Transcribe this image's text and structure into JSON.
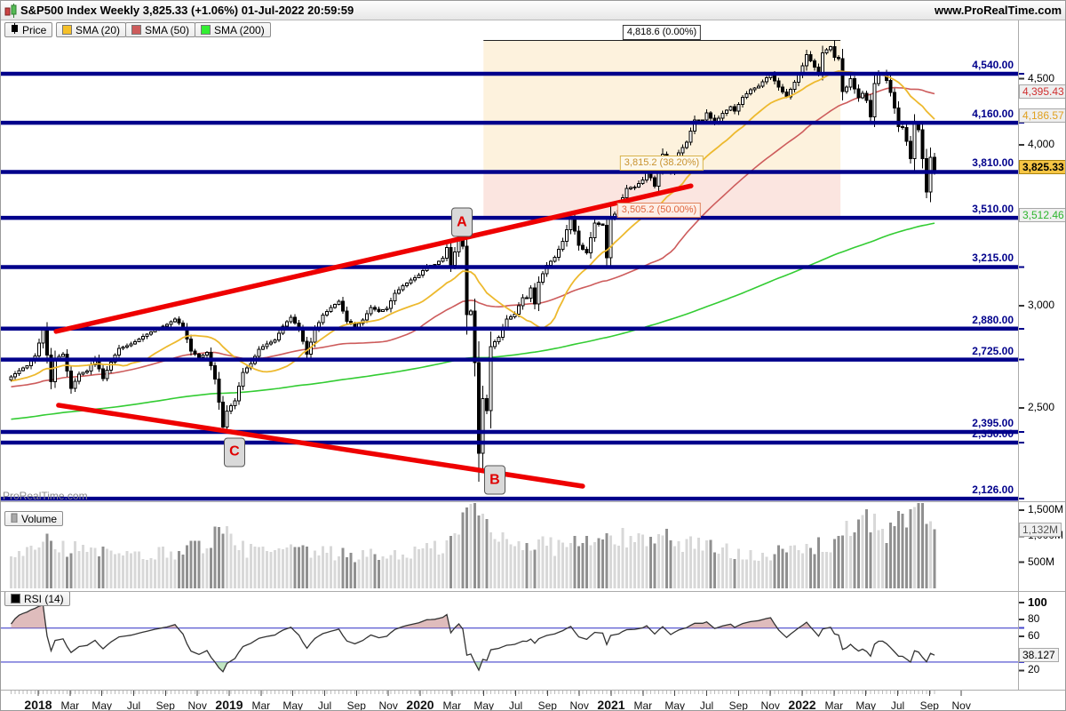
{
  "window": {
    "title": "S&P500 Index Weekly 3,825.33 (+1.06%) 01-Jul-2022 20:59:59",
    "site": "www.ProRealTime.com",
    "watermark": "ProRealTime.com"
  },
  "legend": {
    "price": "Price",
    "sma20": "SMA (20)",
    "sma50": "SMA (50)",
    "sma200": "SMA (200)",
    "volume": "Volume",
    "rsi": "RSI (14)"
  },
  "colors": {
    "level_line": "#00008b",
    "trend_line": "#ee0000",
    "sma20": "#edb92e",
    "sma50": "#cd5c5c",
    "sma200": "#33cc33",
    "candle": "#000000",
    "price_box_bg": "#f6c544",
    "vol_up": "#d8d8d8",
    "vol_down": "#909090",
    "rsi_line": "#333333",
    "rsi_band_line": "#4444cc",
    "fib_upper_fill": "#fdf2dd",
    "fib_lower_fill": "#fbe5e0"
  },
  "chart_data": {
    "type": "candlestick",
    "instrument": "S&P500 Index",
    "timeframe": "Weekly",
    "last_price": "3,825.33",
    "change_pct": "+1.06%",
    "datetime": "01-Jul-2022 20:59:59",
    "price_scale": "log",
    "ylim": [
      2119,
      4875
    ],
    "grid": false,
    "axis_ticks_price": [
      {
        "label": "4,500",
        "value": 4500
      },
      {
        "label": "4,000",
        "value": 4000
      },
      {
        "label": "3,000",
        "value": 3000
      },
      {
        "label": "2,500",
        "value": 2500
      }
    ],
    "horizontal_levels": [
      {
        "label": "4,540.00",
        "value": 4540
      },
      {
        "label": "4,160.00",
        "value": 4160
      },
      {
        "label": "3,810.00",
        "value": 3810
      },
      {
        "label": "3,510.00",
        "value": 3510
      },
      {
        "label": "3,215.00",
        "value": 3215
      },
      {
        "label": "2,880.00",
        "value": 2880
      },
      {
        "label": "2,725.00",
        "value": 2725
      },
      {
        "label": "2,395.00",
        "value": 2395
      },
      {
        "label": "2,350.00",
        "value": 2350
      },
      {
        "label": "2,126.00",
        "value": 2126
      }
    ],
    "current_values": {
      "price": {
        "label": "3,825.33",
        "value": 3825.33
      },
      "sma50": {
        "label": "4,395.43",
        "value": 4395.43
      },
      "sma20": {
        "label": "4,186.57",
        "value": 4186.57
      },
      "sma200": {
        "label": "3,512.46",
        "value": 3512.46
      },
      "volume": {
        "label": "1,132M",
        "value": 1132
      },
      "rsi": {
        "label": "38.127",
        "value": 38.127
      }
    },
    "fibonacci": {
      "start_week": 118.5,
      "end_week": 207.8,
      "levels": [
        {
          "label": "4,818.6 (0.00%)",
          "price": 4818.6,
          "pct": 0.0
        },
        {
          "label": "3,815.2 (38.20%)",
          "price": 3815.2,
          "pct": 38.2
        },
        {
          "label": "3,505.2 (50.00%)",
          "price": 3505.2,
          "pct": 50.0
        }
      ]
    },
    "trendlines": [
      {
        "id": "rising-support",
        "week1": 11.6,
        "price1": 2866,
        "week2": 170.4,
        "price2": 3716
      },
      {
        "id": "falling-line",
        "week1": 12.2,
        "price1": 2512,
        "week2": 143.3,
        "price2": 2174
      }
    ],
    "point_labels": [
      {
        "text": "A",
        "week": 113.1,
        "price": 3483
      },
      {
        "text": "B",
        "week": 121.3,
        "price": 2198
      },
      {
        "text": "C",
        "week": 56.2,
        "price": 2311
      }
    ],
    "weekly_close_anchors": [
      [
        0,
        2642
      ],
      [
        2,
        2673
      ],
      [
        4,
        2695
      ],
      [
        6,
        2743
      ],
      [
        8,
        2873
      ],
      [
        10,
        2620
      ],
      [
        11,
        2732
      ],
      [
        13,
        2752
      ],
      [
        15,
        2588
      ],
      [
        17,
        2656
      ],
      [
        19,
        2670
      ],
      [
        21,
        2728
      ],
      [
        23,
        2635
      ],
      [
        25,
        2713
      ],
      [
        27,
        2780
      ],
      [
        30,
        2802
      ],
      [
        33,
        2840
      ],
      [
        36,
        2875
      ],
      [
        39,
        2901
      ],
      [
        41,
        2930
      ],
      [
        43,
        2886
      ],
      [
        45,
        2768
      ],
      [
        47,
        2736
      ],
      [
        49,
        2760
      ],
      [
        51,
        2633
      ],
      [
        53,
        2417
      ],
      [
        54,
        2486
      ],
      [
        56,
        2532
      ],
      [
        58,
        2664
      ],
      [
        60,
        2707
      ],
      [
        62,
        2776
      ],
      [
        64,
        2803
      ],
      [
        66,
        2822
      ],
      [
        68,
        2893
      ],
      [
        70,
        2939
      ],
      [
        72,
        2881
      ],
      [
        74,
        2752
      ],
      [
        76,
        2873
      ],
      [
        78,
        2950
      ],
      [
        80,
        2990
      ],
      [
        82,
        3025
      ],
      [
        84,
        2918
      ],
      [
        86,
        2889
      ],
      [
        88,
        2926
      ],
      [
        90,
        2992
      ],
      [
        92,
        2970
      ],
      [
        94,
        2986
      ],
      [
        96,
        3067
      ],
      [
        98,
        3110
      ],
      [
        100,
        3141
      ],
      [
        102,
        3169
      ],
      [
        104,
        3221
      ],
      [
        106,
        3230
      ],
      [
        108,
        3265
      ],
      [
        109,
        3329
      ],
      [
        110,
        3225
      ],
      [
        112,
        3380
      ],
      [
        113,
        3338
      ],
      [
        114,
        2954
      ],
      [
        115,
        2972
      ],
      [
        116,
        2711
      ],
      [
        117,
        2305
      ],
      [
        118,
        2541
      ],
      [
        119,
        2489
      ],
      [
        120,
        2789
      ],
      [
        122,
        2837
      ],
      [
        124,
        2930
      ],
      [
        126,
        2955
      ],
      [
        128,
        3044
      ],
      [
        129,
        3041
      ],
      [
        130,
        3098
      ],
      [
        131,
        3009
      ],
      [
        132,
        3130
      ],
      [
        134,
        3225
      ],
      [
        136,
        3271
      ],
      [
        138,
        3365
      ],
      [
        140,
        3508
      ],
      [
        141,
        3427
      ],
      [
        142,
        3341
      ],
      [
        144,
        3298
      ],
      [
        146,
        3477
      ],
      [
        148,
        3465
      ],
      [
        149,
        3270
      ],
      [
        150,
        3509
      ],
      [
        152,
        3558
      ],
      [
        153,
        3638
      ],
      [
        154,
        3699
      ],
      [
        156,
        3709
      ],
      [
        158,
        3756
      ],
      [
        159,
        3825
      ],
      [
        161,
        3714
      ],
      [
        163,
        3932
      ],
      [
        165,
        3811
      ],
      [
        167,
        3943
      ],
      [
        169,
        4019
      ],
      [
        171,
        4180
      ],
      [
        173,
        4181
      ],
      [
        174,
        4233
      ],
      [
        176,
        4156
      ],
      [
        178,
        4230
      ],
      [
        180,
        4280
      ],
      [
        181,
        4247
      ],
      [
        183,
        4352
      ],
      [
        185,
        4412
      ],
      [
        187,
        4442
      ],
      [
        189,
        4509
      ],
      [
        190,
        4535
      ],
      [
        192,
        4433
      ],
      [
        194,
        4357
      ],
      [
        196,
        4471
      ],
      [
        198,
        4605
      ],
      [
        199,
        4698
      ],
      [
        201,
        4595
      ],
      [
        202,
        4538
      ],
      [
        203,
        4712
      ],
      [
        205,
        4766
      ],
      [
        206,
        4677
      ],
      [
        207,
        4663
      ],
      [
        208,
        4398
      ],
      [
        209,
        4432
      ],
      [
        210,
        4501
      ],
      [
        211,
        4419
      ],
      [
        212,
        4349
      ],
      [
        213,
        4385
      ],
      [
        214,
        4329
      ],
      [
        215,
        4204
      ],
      [
        216,
        4463
      ],
      [
        217,
        4543
      ],
      [
        218,
        4546
      ],
      [
        219,
        4488
      ],
      [
        220,
        4392
      ],
      [
        221,
        4272
      ],
      [
        222,
        4131
      ],
      [
        223,
        4123
      ],
      [
        224,
        4024
      ],
      [
        225,
        3901
      ],
      [
        226,
        4158
      ],
      [
        227,
        4109
      ],
      [
        228,
        3901
      ],
      [
        229,
        3675
      ],
      [
        230,
        3912
      ],
      [
        231,
        3825
      ]
    ],
    "wick_overrides": {
      "high": {
        "206": 4818.6
      },
      "low": {
        "117": 2192,
        "229": 3636
      }
    },
    "volume_axis_ticks": [
      {
        "label": "1,500M",
        "value": 1500
      },
      {
        "label": "1,000M",
        "value": 1000
      },
      {
        "label": "500M",
        "value": 500
      }
    ],
    "volume_anchors": [
      [
        0,
        650
      ],
      [
        8,
        950
      ],
      [
        9,
        1150
      ],
      [
        12,
        800
      ],
      [
        20,
        700
      ],
      [
        30,
        600
      ],
      [
        41,
        700
      ],
      [
        48,
        850
      ],
      [
        53,
        1100
      ],
      [
        56,
        800
      ],
      [
        62,
        700
      ],
      [
        72,
        700
      ],
      [
        82,
        650
      ],
      [
        92,
        620
      ],
      [
        100,
        680
      ],
      [
        108,
        800
      ],
      [
        112,
        1000
      ],
      [
        113,
        1450
      ],
      [
        115,
        1550
      ],
      [
        117,
        1500
      ],
      [
        119,
        1200
      ],
      [
        121,
        1000
      ],
      [
        124,
        950
      ],
      [
        128,
        900
      ],
      [
        132,
        850
      ],
      [
        136,
        800
      ],
      [
        140,
        900
      ],
      [
        144,
        850
      ],
      [
        148,
        900
      ],
      [
        150,
        1000
      ],
      [
        153,
        950
      ],
      [
        156,
        900
      ],
      [
        158,
        950
      ],
      [
        160,
        1050
      ],
      [
        163,
        1000
      ],
      [
        166,
        900
      ],
      [
        170,
        880
      ],
      [
        174,
        800
      ],
      [
        178,
        720
      ],
      [
        182,
        700
      ],
      [
        186,
        680
      ],
      [
        190,
        650
      ],
      [
        194,
        700
      ],
      [
        198,
        750
      ],
      [
        202,
        800
      ],
      [
        205,
        850
      ],
      [
        206,
        900
      ],
      [
        208,
        1150
      ],
      [
        211,
        1050
      ],
      [
        214,
        1250
      ],
      [
        216,
        1300
      ],
      [
        219,
        1100
      ],
      [
        222,
        1250
      ],
      [
        224,
        1300
      ],
      [
        226,
        1600
      ],
      [
        228,
        1700
      ],
      [
        229,
        1500
      ],
      [
        230,
        1350
      ],
      [
        231,
        1132
      ]
    ],
    "rsi": {
      "period": 14,
      "current": 38.127,
      "overbought": 70,
      "oversold": 30,
      "axis_ticks": [
        {
          "label": "100",
          "value": 100
        },
        {
          "label": "80",
          "value": 80
        },
        {
          "label": "60",
          "value": 60
        },
        {
          "label": "20",
          "value": 20
        }
      ]
    },
    "time_axis": {
      "labels": [
        "2018",
        "Mar",
        "May",
        "Jul",
        "Sep",
        "Nov",
        "2019",
        "Mar",
        "May",
        "Jul",
        "Sep",
        "Nov",
        "2020",
        "Mar",
        "May",
        "Jul",
        "Sep",
        "Nov",
        "2021",
        "Mar",
        "May",
        "Jul",
        "Sep",
        "Nov",
        "2022",
        "Mar",
        "May",
        "Jul",
        "Sep",
        "Nov"
      ]
    }
  }
}
